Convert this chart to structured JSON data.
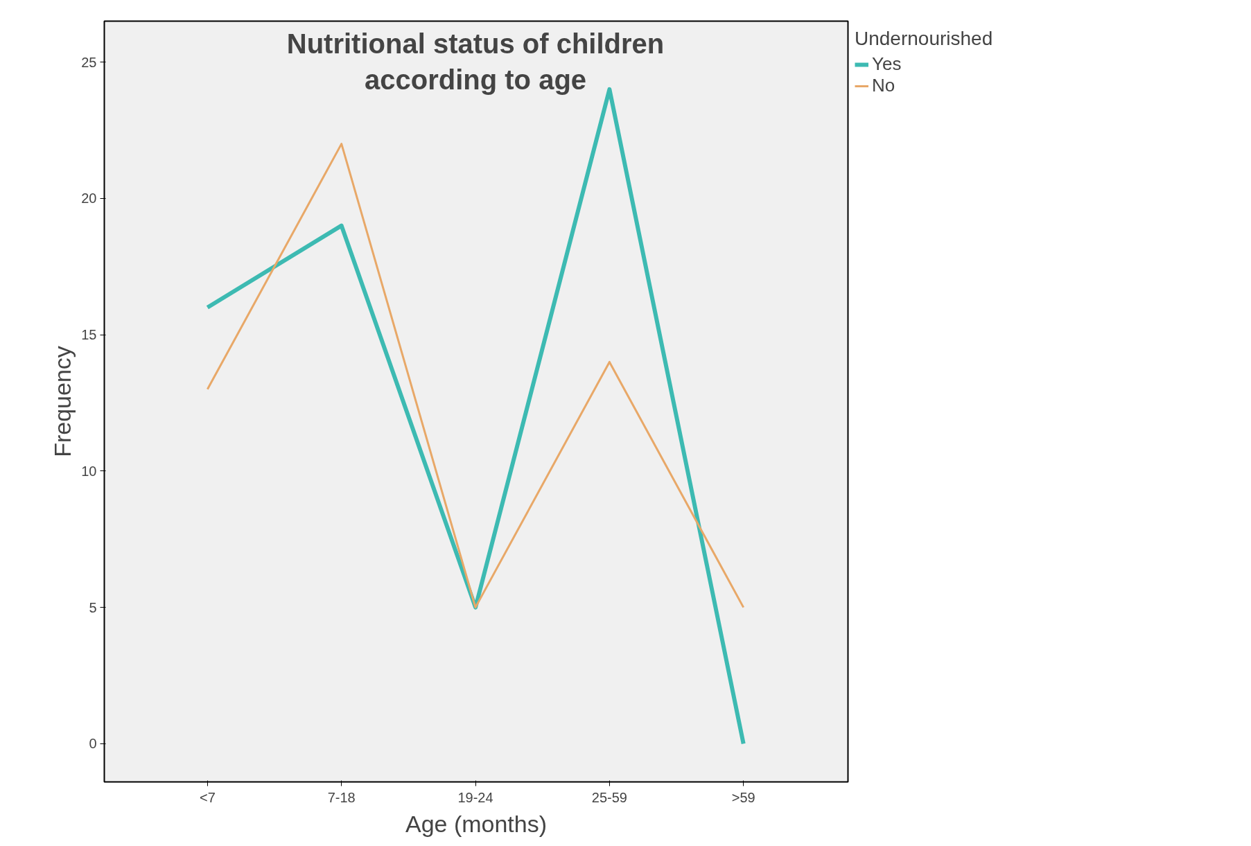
{
  "chart_data": {
    "type": "line",
    "title": "Nutritional status of children\naccording to age",
    "xlabel": "Age (months)",
    "ylabel": "Frequency",
    "legend_title": "Undernourished",
    "categories": [
      "<7",
      "7-18",
      "19-24",
      "25-59",
      ">59"
    ],
    "series": [
      {
        "name": "Yes",
        "color": "#3dbab2",
        "values": [
          16,
          19,
          5,
          24,
          0
        ]
      },
      {
        "name": "No",
        "color": "#e8a868",
        "values": [
          13,
          22,
          5,
          14,
          5
        ]
      }
    ],
    "ylim": [
      -1.4,
      26.5
    ],
    "yticks": [
      0,
      5,
      10,
      15,
      20,
      25
    ],
    "grid": false,
    "legend": "top right",
    "marker": "none",
    "line_style": "solid"
  }
}
